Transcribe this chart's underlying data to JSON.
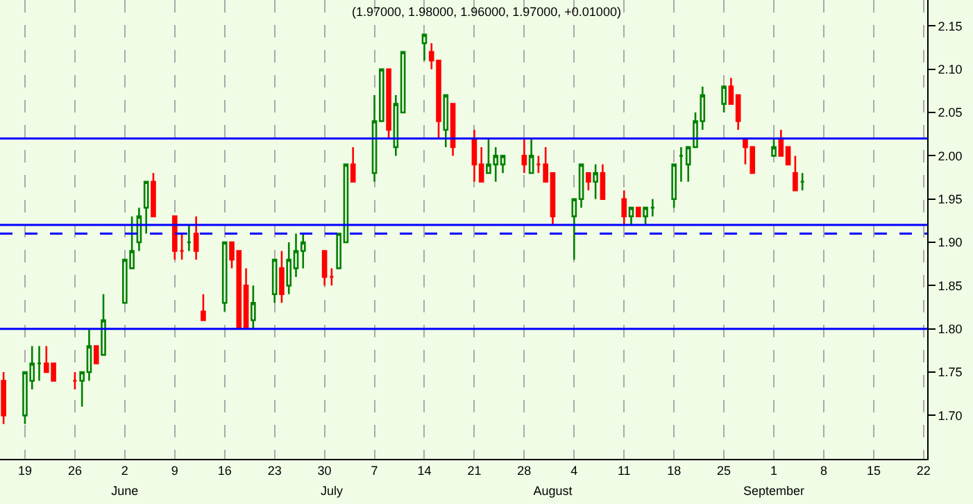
{
  "chart_data": {
    "type": "candlestick",
    "title": "(1.97000, 1.98000, 1.96000, 1.97000, +0.01000)",
    "x": [
      "--05-16",
      "--05-19",
      "--05-20",
      "--05-21",
      "--05-22",
      "--05-23",
      "--05-26",
      "--05-27",
      "--05-28",
      "--05-29",
      "--05-30",
      "--06-02",
      "--06-03",
      "--06-04",
      "--06-05",
      "--06-06",
      "--06-09",
      "--06-10",
      "--06-11",
      "--06-12",
      "--06-13",
      "--06-16",
      "--06-17",
      "--06-18",
      "--06-19",
      "--06-20",
      "--06-23",
      "--06-24",
      "--06-25",
      "--06-26",
      "--06-27",
      "--06-30",
      "--07-01",
      "--07-02",
      "--07-03",
      "--07-04",
      "--07-07",
      "--07-08",
      "--07-09",
      "--07-10",
      "--07-11",
      "--07-14",
      "--07-15",
      "--07-16",
      "--07-17",
      "--07-18",
      "--07-21",
      "--07-22",
      "--07-23",
      "--07-24",
      "--07-25",
      "--07-28",
      "--07-29",
      "--07-30",
      "--07-31",
      "--08-01",
      "--08-04",
      "--08-05",
      "--08-06",
      "--08-07",
      "--08-08",
      "--08-11",
      "--08-12",
      "--08-13",
      "--08-14",
      "--08-15",
      "--08-18",
      "--08-19",
      "--08-20",
      "--08-21",
      "--08-22",
      "--08-25",
      "--08-26",
      "--08-27",
      "--08-28",
      "--08-29",
      "--09-01",
      "--09-02",
      "--09-03",
      "--09-04",
      "--09-05"
    ],
    "ohlc": [
      [
        1.74,
        1.75,
        1.69,
        1.7
      ],
      [
        1.7,
        1.75,
        1.69,
        1.75
      ],
      [
        1.74,
        1.78,
        1.73,
        1.76
      ],
      [
        1.76,
        1.78,
        1.74,
        1.76
      ],
      [
        1.76,
        1.78,
        1.75,
        1.75
      ],
      [
        1.76,
        1.76,
        1.74,
        1.74
      ],
      [
        1.74,
        1.75,
        1.73,
        1.74
      ],
      [
        1.74,
        1.75,
        1.71,
        1.75
      ],
      [
        1.75,
        1.8,
        1.74,
        1.78
      ],
      [
        1.78,
        1.78,
        1.76,
        1.76
      ],
      [
        1.77,
        1.84,
        1.77,
        1.81
      ],
      [
        1.83,
        1.88,
        1.83,
        1.88
      ],
      [
        1.87,
        1.93,
        1.87,
        1.89
      ],
      [
        1.9,
        1.94,
        1.89,
        1.93
      ],
      [
        1.94,
        1.97,
        1.91,
        1.97
      ],
      [
        1.97,
        1.98,
        1.93,
        1.93
      ],
      [
        1.93,
        1.93,
        1.88,
        1.89
      ],
      [
        1.89,
        1.91,
        1.88,
        1.89
      ],
      [
        1.9,
        1.92,
        1.89,
        1.9
      ],
      [
        1.91,
        1.93,
        1.88,
        1.89
      ],
      [
        1.82,
        1.84,
        1.81,
        1.81
      ],
      [
        1.83,
        1.9,
        1.82,
        1.9
      ],
      [
        1.9,
        1.9,
        1.87,
        1.88
      ],
      [
        1.89,
        1.89,
        1.8,
        1.8
      ],
      [
        1.85,
        1.87,
        1.8,
        1.8
      ],
      [
        1.81,
        1.85,
        1.8,
        1.83
      ],
      [
        1.84,
        1.88,
        1.83,
        1.88
      ],
      [
        1.87,
        1.89,
        1.83,
        1.84
      ],
      [
        1.85,
        1.9,
        1.84,
        1.88
      ],
      [
        1.87,
        1.91,
        1.86,
        1.89
      ],
      [
        1.89,
        1.91,
        1.87,
        1.9
      ],
      [
        1.89,
        1.89,
        1.85,
        1.86
      ],
      [
        1.86,
        1.87,
        1.85,
        1.86
      ],
      [
        1.87,
        1.91,
        1.87,
        1.91
      ],
      [
        1.9,
        1.99,
        1.9,
        1.99
      ],
      [
        1.99,
        2.01,
        1.97,
        1.97
      ],
      [
        1.98,
        2.07,
        1.97,
        2.04
      ],
      [
        2.04,
        2.1,
        2.04,
        2.1
      ],
      [
        2.1,
        2.1,
        2.02,
        2.03
      ],
      [
        2.01,
        2.07,
        2.0,
        2.06
      ],
      [
        2.05,
        2.12,
        2.05,
        2.12
      ],
      [
        2.13,
        2.14,
        2.11,
        2.14
      ],
      [
        2.12,
        2.13,
        2.1,
        2.11
      ],
      [
        2.11,
        2.11,
        2.02,
        2.04
      ],
      [
        2.03,
        2.07,
        2.01,
        2.07
      ],
      [
        2.06,
        2.06,
        2.0,
        2.01
      ],
      [
        2.02,
        2.03,
        1.97,
        1.99
      ],
      [
        1.99,
        2.01,
        1.97,
        1.97
      ],
      [
        1.98,
        2.02,
        1.98,
        1.99
      ],
      [
        1.99,
        2.01,
        1.97,
        2.0
      ],
      [
        1.99,
        2.0,
        1.98,
        2.0
      ],
      [
        2.0,
        2.02,
        1.98,
        1.99
      ],
      [
        1.98,
        2.02,
        1.98,
        2.0
      ],
      [
        1.99,
        2.0,
        1.98,
        1.99
      ],
      [
        1.99,
        2.01,
        1.97,
        1.97
      ],
      [
        1.98,
        1.98,
        1.92,
        1.93
      ],
      [
        1.93,
        1.95,
        1.88,
        1.95
      ],
      [
        1.95,
        1.99,
        1.94,
        1.99
      ],
      [
        1.98,
        1.98,
        1.96,
        1.97
      ],
      [
        1.97,
        1.99,
        1.95,
        1.98
      ],
      [
        1.98,
        1.99,
        1.95,
        1.95
      ],
      [
        1.95,
        1.96,
        1.92,
        1.93
      ],
      [
        1.93,
        1.94,
        1.92,
        1.94
      ],
      [
        1.94,
        1.94,
        1.93,
        1.93
      ],
      [
        1.93,
        1.94,
        1.92,
        1.94
      ],
      [
        1.94,
        1.95,
        1.93,
        1.94
      ],
      [
        1.95,
        1.99,
        1.94,
        1.99
      ],
      [
        2.0,
        2.01,
        1.97,
        2.0
      ],
      [
        1.99,
        2.01,
        1.97,
        2.01
      ],
      [
        2.01,
        2.05,
        2.01,
        2.04
      ],
      [
        2.04,
        2.08,
        2.03,
        2.07
      ],
      [
        2.06,
        2.08,
        2.05,
        2.08
      ],
      [
        2.08,
        2.09,
        2.06,
        2.06
      ],
      [
        2.07,
        2.07,
        2.03,
        2.04
      ],
      [
        2.02,
        2.02,
        1.99,
        2.01
      ],
      [
        2.01,
        2.01,
        1.98,
        1.98
      ],
      [
        2.0,
        2.02,
        2.0,
        2.01
      ],
      [
        2.02,
        2.03,
        2.0,
        2.0
      ],
      [
        2.01,
        2.01,
        1.99,
        1.99
      ],
      [
        1.98,
        2.0,
        1.96,
        1.96
      ],
      [
        1.97,
        1.98,
        1.96,
        1.97
      ]
    ],
    "xlim": [
      "--05-15T12:00",
      "--09-22T12:00"
    ],
    "xticks": [
      {
        "value": "--05-19",
        "label": "19"
      },
      {
        "value": "--05-26",
        "label": "26"
      },
      {
        "value": "--06-02",
        "label": "2"
      },
      {
        "value": "--06-09",
        "label": "9"
      },
      {
        "value": "--06-16",
        "label": "16"
      },
      {
        "value": "--06-23",
        "label": "23"
      },
      {
        "value": "--06-30",
        "label": "30"
      },
      {
        "value": "--07-07",
        "label": "7"
      },
      {
        "value": "--07-14",
        "label": "14"
      },
      {
        "value": "--07-21",
        "label": "21"
      },
      {
        "value": "--07-28",
        "label": "28"
      },
      {
        "value": "--08-04",
        "label": "4"
      },
      {
        "value": "--08-11",
        "label": "11"
      },
      {
        "value": "--08-18",
        "label": "18"
      },
      {
        "value": "--08-25",
        "label": "25"
      },
      {
        "value": "--09-01",
        "label": "1"
      },
      {
        "value": "--09-08",
        "label": "8"
      },
      {
        "value": "--09-15",
        "label": "15"
      },
      {
        "value": "--09-22",
        "label": "22"
      }
    ],
    "x2lim": [
      "--05-15T12:00",
      "--09-22T12:00"
    ],
    "x2ticks": [
      {
        "value": "--06-02",
        "label": "June"
      },
      {
        "value": "--07-01",
        "label": "July"
      },
      {
        "value": "--08-01",
        "label": "August"
      },
      {
        "value": "--09-01",
        "label": "September"
      }
    ],
    "ylim": [
      1.65,
      2.18
    ],
    "yticks": [
      {
        "value": 1.7,
        "label": "1.70"
      },
      {
        "value": 1.75,
        "label": "1.75"
      },
      {
        "value": 1.8,
        "label": "1.80"
      },
      {
        "value": 1.85,
        "label": "1.85"
      },
      {
        "value": 1.9,
        "label": "1.90"
      },
      {
        "value": 1.95,
        "label": "1.95"
      },
      {
        "value": 2.0,
        "label": "2.00"
      },
      {
        "value": 2.05,
        "label": "2.05"
      },
      {
        "value": 2.1,
        "label": "2.10"
      },
      {
        "value": 2.15,
        "label": "2.15"
      }
    ],
    "ref_lines": [
      {
        "axis": "y",
        "value": 2.02,
        "color": "#0000ff"
      },
      {
        "axis": "y",
        "value": 1.92,
        "color": "#0000ff"
      },
      {
        "axis": "y",
        "value": 1.91,
        "color": "#0000ff",
        "line_style": "dashed"
      },
      {
        "axis": "y",
        "value": 1.8,
        "color": "#0000ff"
      }
    ],
    "grid": "x"
  }
}
